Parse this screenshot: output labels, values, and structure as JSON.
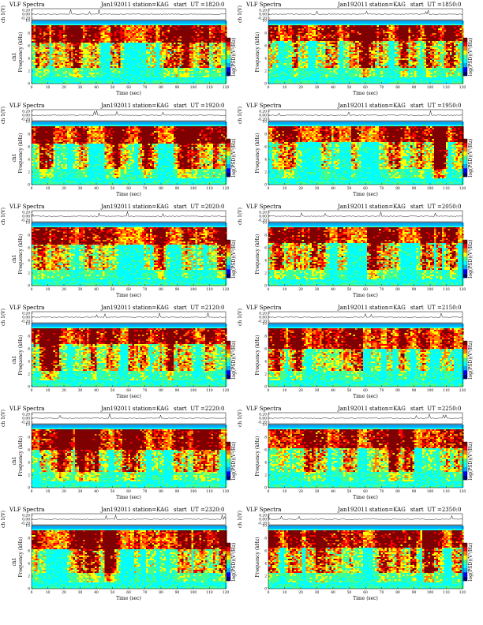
{
  "chart_data": [
    {
      "type": "heatmap",
      "title": "VLF Spectra",
      "date": "Jan192011",
      "station": "station=KAG",
      "start_ut": "start  UT =1820:0",
      "timeseries_ylabel": "ch 1(V)",
      "timeseries_ticks": [
        "0.20",
        "0.00",
        "-0.20"
      ],
      "ylabel": "Frequency (kHz)",
      "channel_label": "ch1",
      "xlabel": "Time (sec)",
      "x_ticks": [
        "0",
        "10",
        "20",
        "30",
        "40",
        "50",
        "60",
        "70",
        "80",
        "90",
        "100",
        "110",
        "120"
      ],
      "y_ticks": [
        "0",
        "2",
        "4",
        "6",
        "8",
        "10"
      ],
      "xlim": [
        0,
        120
      ],
      "ylim": [
        0,
        10
      ],
      "colorbar_label": "log(PSD)(V²/Hz)",
      "colormap": [
        "#00007f",
        "#0000ff",
        "#00b0ff",
        "#00ffff",
        "#40ff90",
        "#ffff00",
        "#ff8000",
        "#ff0000",
        "#7f0000"
      ]
    },
    {
      "type": "heatmap",
      "title": "VLF Spectra",
      "date": "Jan192011",
      "station": "station=KAG",
      "start_ut": "start  UT =1850:0",
      "timeseries_ylabel": "ch 1(V)",
      "timeseries_ticks": [
        "0.20",
        "0.00",
        "-0.20"
      ],
      "ylabel": "Frequency (kHz)",
      "channel_label": "",
      "xlabel": "Time (sec)",
      "x_ticks": [
        "0",
        "10",
        "20",
        "30",
        "40",
        "50",
        "60",
        "70",
        "80",
        "90",
        "100",
        "110",
        "120"
      ],
      "y_ticks": [
        "0",
        "2",
        "4",
        "6",
        "8",
        "10"
      ],
      "xlim": [
        0,
        120
      ],
      "ylim": [
        0,
        10
      ],
      "colorbar_label": "log(PSD)(V²/Hz)",
      "colormap": [
        "#00007f",
        "#0000ff",
        "#00b0ff",
        "#00ffff",
        "#40ff90",
        "#ffff00",
        "#ff8000",
        "#ff0000",
        "#7f0000"
      ]
    },
    {
      "type": "heatmap",
      "title": "VLF Spectra",
      "date": "Jan192011",
      "station": "station=KAG",
      "start_ut": "start  UT =1920:0",
      "timeseries_ylabel": "ch 1(V)",
      "timeseries_ticks": [
        "0.20",
        "0.00",
        "-0.20"
      ],
      "ylabel": "Frequency (kHz)",
      "channel_label": "ch1",
      "xlabel": "Time (sec)",
      "x_ticks": [
        "0",
        "10",
        "20",
        "30",
        "40",
        "50",
        "60",
        "70",
        "80",
        "90",
        "100",
        "110",
        "120"
      ],
      "y_ticks": [
        "0",
        "2",
        "4",
        "6",
        "8",
        "10"
      ],
      "xlim": [
        0,
        120
      ],
      "ylim": [
        0,
        10
      ],
      "colorbar_label": "log(PSD)(V²/Hz)",
      "colormap": [
        "#00007f",
        "#0000ff",
        "#00b0ff",
        "#00ffff",
        "#40ff90",
        "#ffff00",
        "#ff8000",
        "#ff0000",
        "#7f0000"
      ]
    },
    {
      "type": "heatmap",
      "title": "VLF Spectra",
      "date": "Jan192011",
      "station": "station=KAG",
      "start_ut": "start  UT =1950:0",
      "timeseries_ylabel": "ch 1(V)",
      "timeseries_ticks": [
        "0.20",
        "0.00",
        "-0.20"
      ],
      "ylabel": "Frequency (kHz)",
      "channel_label": "",
      "xlabel": "Time (sec)",
      "x_ticks": [
        "0",
        "10",
        "20",
        "30",
        "40",
        "50",
        "60",
        "70",
        "80",
        "90",
        "100",
        "110",
        "120"
      ],
      "y_ticks": [
        "0",
        "2",
        "4",
        "6",
        "8",
        "10"
      ],
      "xlim": [
        0,
        120
      ],
      "ylim": [
        0,
        10
      ],
      "colorbar_label": "log(PSD)(V²/Hz)",
      "colormap": [
        "#00007f",
        "#0000ff",
        "#00b0ff",
        "#00ffff",
        "#40ff90",
        "#ffff00",
        "#ff8000",
        "#ff0000",
        "#7f0000"
      ]
    },
    {
      "type": "heatmap",
      "title": "VLF Spectra",
      "date": "Jan192011",
      "station": "station=KAG",
      "start_ut": "start  UT =2020:0",
      "timeseries_ylabel": "ch 1(V)",
      "timeseries_ticks": [
        "0.20",
        "0.00",
        "-0.20"
      ],
      "ylabel": "Frequency (kHz)",
      "channel_label": "ch1",
      "xlabel": "Time (sec)",
      "x_ticks": [
        "0",
        "10",
        "20",
        "30",
        "40",
        "50",
        "60",
        "70",
        "80",
        "90",
        "100",
        "110",
        "120"
      ],
      "y_ticks": [
        "0",
        "2",
        "4",
        "6",
        "8",
        "10"
      ],
      "xlim": [
        0,
        120
      ],
      "ylim": [
        0,
        10
      ],
      "colorbar_label": "log(PSD)(V²/Hz)",
      "colormap": [
        "#00007f",
        "#0000ff",
        "#00b0ff",
        "#00ffff",
        "#40ff90",
        "#ffff00",
        "#ff8000",
        "#ff0000",
        "#7f0000"
      ]
    },
    {
      "type": "heatmap",
      "title": "VLF Spectra",
      "date": "Jan192011",
      "station": "station=KAG",
      "start_ut": "start  UT =2050:0",
      "timeseries_ylabel": "ch 1(V)",
      "timeseries_ticks": [
        "0.20",
        "0.00",
        "-0.20"
      ],
      "ylabel": "Frequency (kHz)",
      "channel_label": "",
      "xlabel": "Time (sec)",
      "x_ticks": [
        "0",
        "10",
        "20",
        "30",
        "40",
        "50",
        "60",
        "70",
        "80",
        "90",
        "100",
        "110",
        "120"
      ],
      "y_ticks": [
        "0",
        "2",
        "4",
        "6",
        "8",
        "10"
      ],
      "xlim": [
        0,
        120
      ],
      "ylim": [
        0,
        10
      ],
      "colorbar_label": "log(PSD)(V²/Hz)",
      "colormap": [
        "#00007f",
        "#0000ff",
        "#00b0ff",
        "#00ffff",
        "#40ff90",
        "#ffff00",
        "#ff8000",
        "#ff0000",
        "#7f0000"
      ]
    },
    {
      "type": "heatmap",
      "title": "VLF Spectra",
      "date": "Jan192011",
      "station": "station=KAG",
      "start_ut": "start  UT =2120:0",
      "timeseries_ylabel": "ch 1(V)",
      "timeseries_ticks": [
        "0.20",
        "0.00",
        "-0.20"
      ],
      "ylabel": "Frequency (kHz)",
      "channel_label": "ch1",
      "xlabel": "Time (sec)",
      "x_ticks": [
        "0",
        "10",
        "20",
        "30",
        "40",
        "50",
        "60",
        "70",
        "80",
        "90",
        "100",
        "110",
        "120"
      ],
      "y_ticks": [
        "0",
        "2",
        "4",
        "6",
        "8",
        "10"
      ],
      "xlim": [
        0,
        120
      ],
      "ylim": [
        0,
        10
      ],
      "colorbar_label": "log(PSD)(V²/Hz)",
      "colormap": [
        "#00007f",
        "#0000ff",
        "#00b0ff",
        "#00ffff",
        "#40ff90",
        "#ffff00",
        "#ff8000",
        "#ff0000",
        "#7f0000"
      ]
    },
    {
      "type": "heatmap",
      "title": "VLF Spectra",
      "date": "Jan192011",
      "station": "station=KAG",
      "start_ut": "start  UT =2150:0",
      "timeseries_ylabel": "ch 1(V)",
      "timeseries_ticks": [
        "0.20",
        "0.00",
        "-0.20"
      ],
      "ylabel": "Frequency (kHz)",
      "channel_label": "",
      "xlabel": "Time (sec)",
      "x_ticks": [
        "0",
        "10",
        "20",
        "30",
        "40",
        "50",
        "60",
        "70",
        "80",
        "90",
        "100",
        "110",
        "120"
      ],
      "y_ticks": [
        "0",
        "2",
        "4",
        "6",
        "8",
        "10"
      ],
      "xlim": [
        0,
        120
      ],
      "ylim": [
        0,
        10
      ],
      "colorbar_label": "log(PSD)(V²/Hz)",
      "colormap": [
        "#00007f",
        "#0000ff",
        "#00b0ff",
        "#00ffff",
        "#40ff90",
        "#ffff00",
        "#ff8000",
        "#ff0000",
        "#7f0000"
      ]
    },
    {
      "type": "heatmap",
      "title": "VLF Spectra",
      "date": "Jan192011",
      "station": "station=KAG",
      "start_ut": "start  UT =2220:0",
      "timeseries_ylabel": "ch 1(V)",
      "timeseries_ticks": [
        "0.20",
        "0.00",
        "-0.20"
      ],
      "ylabel": "Frequency (kHz)",
      "channel_label": "ch1",
      "xlabel": "Time (sec)",
      "x_ticks": [
        "0",
        "10",
        "20",
        "30",
        "40",
        "50",
        "60",
        "70",
        "80",
        "90",
        "100",
        "110",
        "120"
      ],
      "y_ticks": [
        "0",
        "2",
        "4",
        "6",
        "8",
        "10"
      ],
      "xlim": [
        0,
        120
      ],
      "ylim": [
        0,
        10
      ],
      "colorbar_label": "log(PSD)(V²/Hz)",
      "colormap": [
        "#00007f",
        "#0000ff",
        "#00b0ff",
        "#00ffff",
        "#40ff90",
        "#ffff00",
        "#ff8000",
        "#ff0000",
        "#7f0000"
      ]
    },
    {
      "type": "heatmap",
      "title": "VLF Spectra",
      "date": "Jan192011",
      "station": "station=KAG",
      "start_ut": "start  UT =2250:0",
      "timeseries_ylabel": "ch 1(V)",
      "timeseries_ticks": [
        "0.20",
        "0.00",
        "-0.20"
      ],
      "ylabel": "Frequency (kHz)",
      "channel_label": "",
      "xlabel": "Time (sec)",
      "x_ticks": [
        "0",
        "10",
        "20",
        "30",
        "40",
        "50",
        "60",
        "70",
        "80",
        "90",
        "100",
        "110",
        "120"
      ],
      "y_ticks": [
        "0",
        "2",
        "4",
        "6",
        "8",
        "10"
      ],
      "xlim": [
        0,
        120
      ],
      "ylim": [
        0,
        10
      ],
      "colorbar_label": "log(PSD)(V²/Hz)",
      "colormap": [
        "#00007f",
        "#0000ff",
        "#00b0ff",
        "#00ffff",
        "#40ff90",
        "#ffff00",
        "#ff8000",
        "#ff0000",
        "#7f0000"
      ]
    },
    {
      "type": "heatmap",
      "title": "VLF Spectra",
      "date": "Jan192011",
      "station": "station=KAG",
      "start_ut": "start  UT =2320:0",
      "timeseries_ylabel": "ch 1(V)",
      "timeseries_ticks": [
        "0.20",
        "0.00",
        "-0.20"
      ],
      "ylabel": "Frequency (kHz)",
      "channel_label": "ch1",
      "xlabel": "Time (sec)",
      "x_ticks": [
        "0",
        "10",
        "20",
        "30",
        "40",
        "50",
        "60",
        "70",
        "80",
        "90",
        "100",
        "110",
        "120"
      ],
      "y_ticks": [
        "0",
        "2",
        "4",
        "6",
        "8",
        "10"
      ],
      "xlim": [
        0,
        120
      ],
      "ylim": [
        0,
        10
      ],
      "colorbar_label": "log(PSD)(V²/Hz)",
      "colormap": [
        "#00007f",
        "#0000ff",
        "#00b0ff",
        "#00ffff",
        "#40ff90",
        "#ffff00",
        "#ff8000",
        "#ff0000",
        "#7f0000"
      ]
    },
    {
      "type": "heatmap",
      "title": "VLF Spectra",
      "date": "Jan192011",
      "station": "station=KAG",
      "start_ut": "start  UT =2350:0",
      "timeseries_ylabel": "ch 1(V)",
      "timeseries_ticks": [
        "0.20",
        "0.00",
        "-0.20"
      ],
      "ylabel": "Frequency (kHz)",
      "channel_label": "",
      "xlabel": "Time (sec)",
      "x_ticks": [
        "0",
        "10",
        "20",
        "30",
        "40",
        "50",
        "60",
        "70",
        "80",
        "90",
        "100",
        "110",
        "120"
      ],
      "y_ticks": [
        "0",
        "2",
        "4",
        "6",
        "8",
        "10"
      ],
      "xlim": [
        0,
        120
      ],
      "ylim": [
        0,
        10
      ],
      "colorbar_label": "log(PSD)(V²/Hz)",
      "colormap": [
        "#00007f",
        "#0000ff",
        "#00b0ff",
        "#00ffff",
        "#40ff90",
        "#ffff00",
        "#ff8000",
        "#ff0000",
        "#7f0000"
      ]
    }
  ]
}
